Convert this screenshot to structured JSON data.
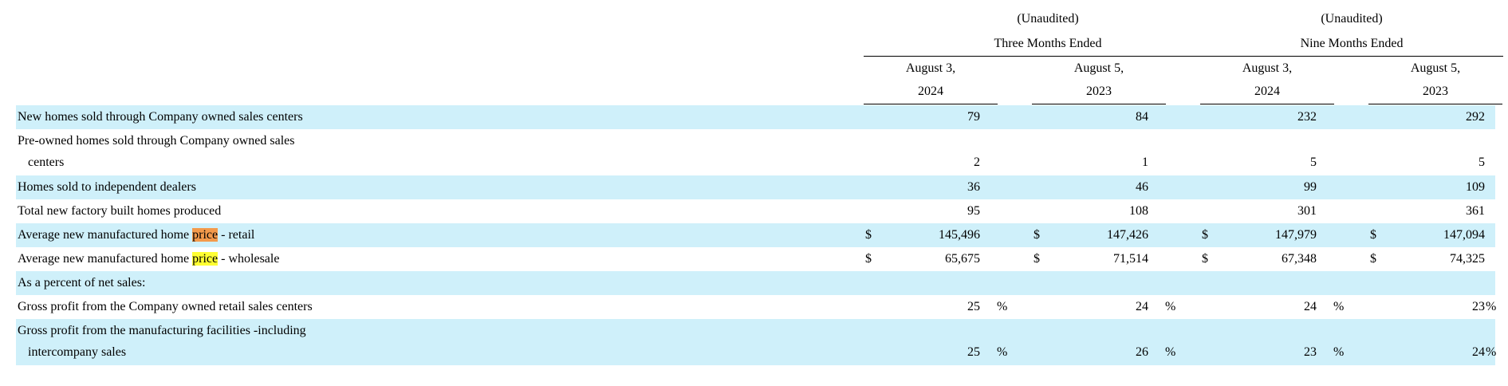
{
  "header": {
    "group1": {
      "status": "(Unaudited)",
      "period": "Three Months Ended",
      "col1_date": "August 3,",
      "col1_year": "2024",
      "col2_date": "August 5,",
      "col2_year": "2023"
    },
    "group2": {
      "status": "(Unaudited)",
      "period": "Nine Months Ended",
      "col1_date": "August 3,",
      "col1_year": "2024",
      "col2_date": "August 5,",
      "col2_year": "2023"
    }
  },
  "rows": {
    "new_homes": {
      "label": "New homes sold through Company owned sales centers",
      "values": [
        "79",
        "84",
        "232",
        "292"
      ]
    },
    "preowned": {
      "label_line1": "Pre-owned homes sold through Company owned sales",
      "label_line2": "centers",
      "values": [
        "2",
        "1",
        "5",
        "5"
      ]
    },
    "dealers": {
      "label": "Homes sold to independent dealers",
      "values": [
        "36",
        "46",
        "99",
        "109"
      ]
    },
    "produced": {
      "label": "Total new factory built homes produced",
      "values": [
        "95",
        "108",
        "301",
        "361"
      ]
    },
    "avg_retail": {
      "label_pre": "Average new manufactured home ",
      "label_highlight": "price",
      "label_post": " - retail",
      "currency": "$",
      "values": [
        "145,496",
        "147,426",
        "147,979",
        "147,094"
      ]
    },
    "avg_wholesale": {
      "label_pre": "Average new manufactured home ",
      "label_highlight": "price",
      "label_post": " - wholesale",
      "currency": "$",
      "values": [
        "65,675",
        "71,514",
        "67,348",
        "74,325"
      ]
    },
    "percent_header": {
      "label": "As a percent of net sales:"
    },
    "gp_retail": {
      "label": "Gross profit from the Company owned retail sales centers",
      "values": [
        "25",
        "24",
        "24",
        "23"
      ],
      "unit": "%"
    },
    "gp_manufacturing": {
      "label_line1": "Gross profit from the manufacturing facilities -including",
      "label_line2": "intercompany sales",
      "values": [
        "25",
        "26",
        "23",
        "24"
      ],
      "unit": "%"
    }
  },
  "colors": {
    "row_shade": "#cff0fa",
    "highlight_orange": "#f39a4b",
    "highlight_yellow": "#ffff33"
  }
}
